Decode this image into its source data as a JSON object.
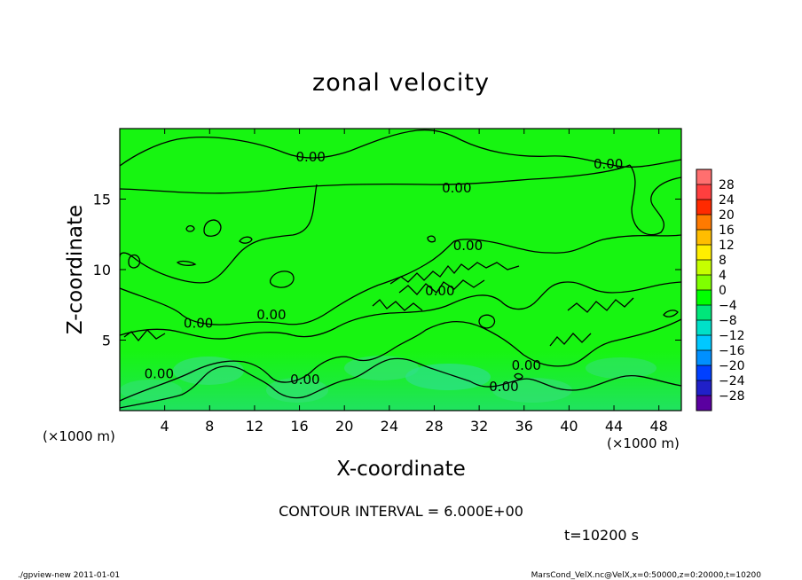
{
  "chart_data": {
    "type": "heatmap",
    "title": "zonal velocity",
    "xlabel": "X-coordinate",
    "ylabel": "Z-coordinate",
    "x_unit_label": "(×1000 m)",
    "y_unit_label": "(×1000 m)",
    "xlim": [
      0,
      50
    ],
    "ylim": [
      0,
      20
    ],
    "x_ticks": [
      4,
      8,
      12,
      16,
      20,
      24,
      28,
      32,
      36,
      40,
      44,
      48
    ],
    "y_ticks": [
      5,
      10,
      15
    ],
    "contour_interval_text": "CONTOUR INTERVAL = 6.000E+00",
    "time_text": "t=10200 s",
    "contour_labels": [
      {
        "text": "0.00",
        "x": 17.0,
        "y": 18.0
      },
      {
        "text": "0.00",
        "x": 43.5,
        "y": 17.5
      },
      {
        "text": "0.00",
        "x": 30.0,
        "y": 15.8
      },
      {
        "text": "0.00",
        "x": 31.0,
        "y": 11.7
      },
      {
        "text": "0.00",
        "x": 28.5,
        "y": 8.5
      },
      {
        "text": "0.00",
        "x": 13.5,
        "y": 6.8
      },
      {
        "text": "0.00",
        "x": 7.0,
        "y": 6.2
      },
      {
        "text": "0.00",
        "x": 3.5,
        "y": 2.6
      },
      {
        "text": "0.00",
        "x": 16.5,
        "y": 2.2
      },
      {
        "text": "0.00",
        "x": 36.2,
        "y": 3.2
      },
      {
        "text": "0.00",
        "x": 34.2,
        "y": 1.7
      }
    ],
    "colorbar": {
      "levels": [
        "28",
        "24",
        "20",
        "16",
        "12",
        "8",
        "4",
        "0",
        "−4",
        "−8",
        "−12",
        "−16",
        "−20",
        "−24",
        "−28"
      ],
      "colors": [
        "#ff6f6f",
        "#ff3f3f",
        "#ff2a00",
        "#ff7a00",
        "#ffbd00",
        "#ffee00",
        "#c6ff00",
        "#7fff00",
        "#00ff00",
        "#00e67a",
        "#00e0c8",
        "#00c8ff",
        "#0090ff",
        "#0040ff",
        "#2020c8",
        "#5a00a0"
      ]
    }
  },
  "footer": {
    "left": "./gpview-new   2011-01-01",
    "right": "MarsCond_VelX.nc@VelX,x=0:50000,z=0:20000,t=10200"
  }
}
